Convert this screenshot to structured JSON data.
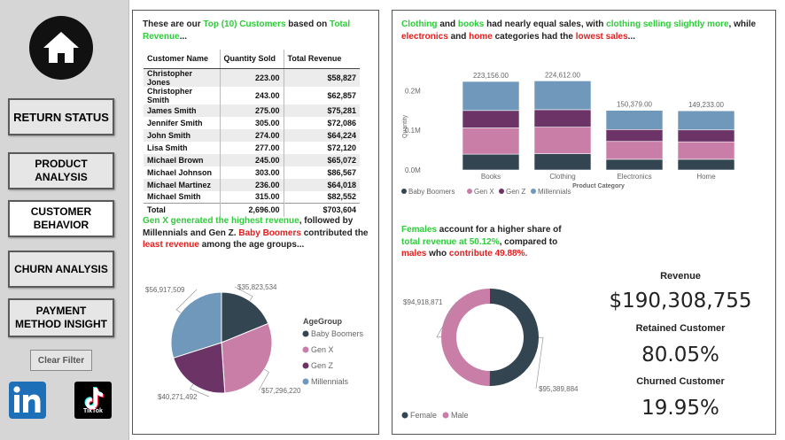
{
  "sidebar": {
    "nav": [
      {
        "label": "RETURN STATUS"
      },
      {
        "label": "PRODUCT ANALYSIS"
      },
      {
        "label": "CUSTOMER BEHAVIOR"
      },
      {
        "label": "CHURN ANALYSIS"
      },
      {
        "label": "PAYMENT METHOD INSIGHT"
      }
    ],
    "clear_filter": "Clear Filter",
    "tiktok_label": "TikTok"
  },
  "customers": {
    "text_a": "These are our ",
    "text_b": "Top (10) Customers",
    "text_c": " based on ",
    "text_d": "Total Revenue",
    "text_e": "...",
    "headers": [
      "Customer Name",
      "Quantity Sold",
      "Total Revenue"
    ],
    "rows": [
      [
        "Christopher Jones",
        "223.00",
        "$58,827"
      ],
      [
        "Christopher Smith",
        "243.00",
        "$62,857"
      ],
      [
        "James Smith",
        "275.00",
        "$75,281"
      ],
      [
        "Jennifer Smith",
        "305.00",
        "$72,086"
      ],
      [
        "John Smith",
        "274.00",
        "$64,224"
      ],
      [
        "Lisa Smith",
        "277.00",
        "$72,120"
      ],
      [
        "Michael Brown",
        "245.00",
        "$65,072"
      ],
      [
        "Michael Johnson",
        "303.00",
        "$86,567"
      ],
      [
        "Michael Martinez",
        "236.00",
        "$64,018"
      ],
      [
        "Michael Smith",
        "315.00",
        "$82,552"
      ]
    ],
    "total": [
      "Total",
      "2,696.00",
      "$703,604"
    ]
  },
  "age_text": {
    "a": "Gen X generated the highest revenue",
    "b": ", followed by Millennials and Gen Z. ",
    "c": "Baby Boomers",
    "d": " contributed the ",
    "e": "least revenue",
    "f": " among the age groups..."
  },
  "category_text": {
    "a": "Clothing",
    "b": " and ",
    "c": "books",
    "d": " had nearly equal sales, with ",
    "e": "clothing selling slightly more",
    "f": ", while ",
    "g": "electronics",
    "h": " and ",
    "i": "home",
    "j": " categories had the ",
    "k": "lowest sales",
    "l": "..."
  },
  "gender_text": {
    "a": "Females",
    "b": " account for a higher share of ",
    "c": "total revenue at 50.12%",
    "d": ", compared to ",
    "e": "males",
    "f": " who ",
    "g": "contribute 49.88%."
  },
  "kpis": {
    "revenue_label": "Revenue",
    "revenue_value": "$190,308,755",
    "retained_label": "Retained Customer",
    "retained_value": "80.05%",
    "churned_label": "Churned Customer",
    "churned_value": "19.95%"
  },
  "colors": {
    "baby_boomers": "#344552",
    "gen_x": "#c97ea8",
    "gen_z": "#6b3366",
    "millennials": "#7098ba",
    "female": "#344552",
    "male": "#c97ea8"
  },
  "chart_data": [
    {
      "type": "bar",
      "stacked": true,
      "categories": [
        "Books",
        "Clothing",
        "Electronics",
        "Home"
      ],
      "totals_labels": [
        "223,156.00",
        "224,612.00",
        "150,379.00",
        "149,233.00"
      ],
      "totals": [
        223156,
        224612,
        150379,
        149233
      ],
      "series": [
        {
          "name": "Baby Boomers",
          "values": [
            40000,
            41000,
            27000,
            27000
          ]
        },
        {
          "name": "Gen X",
          "values": [
            66000,
            67000,
            45000,
            44000
          ]
        },
        {
          "name": "Gen Z",
          "values": [
            44000,
            44000,
            30000,
            30000
          ]
        },
        {
          "name": "Millennials",
          "values": [
            73156,
            72612,
            48379,
            48233
          ]
        }
      ],
      "xlabel": "Product Category",
      "ylabel": "Quantity",
      "yticks": [
        "0.0M",
        "0.1M",
        "0.2M"
      ],
      "ylim": [
        0,
        250000
      ],
      "legend_position": "bottom-left"
    },
    {
      "type": "pie",
      "legend_title": "AgeGroup",
      "labels": [
        "Baby Boomers",
        "Gen X",
        "Gen Z",
        "Millennials"
      ],
      "values": [
        35823534,
        57296220,
        40271492,
        56917509
      ],
      "value_labels": [
        "$35,823,534",
        "$57,296,220",
        "$40,271,492",
        "$56,917,509"
      ],
      "legend_position": "right"
    },
    {
      "type": "pie",
      "donut": true,
      "labels": [
        "Female",
        "Male"
      ],
      "values": [
        95389884,
        94918871
      ],
      "value_labels": [
        "$95,389,884",
        "$94,918,871"
      ],
      "legend_position": "bottom-left"
    }
  ]
}
